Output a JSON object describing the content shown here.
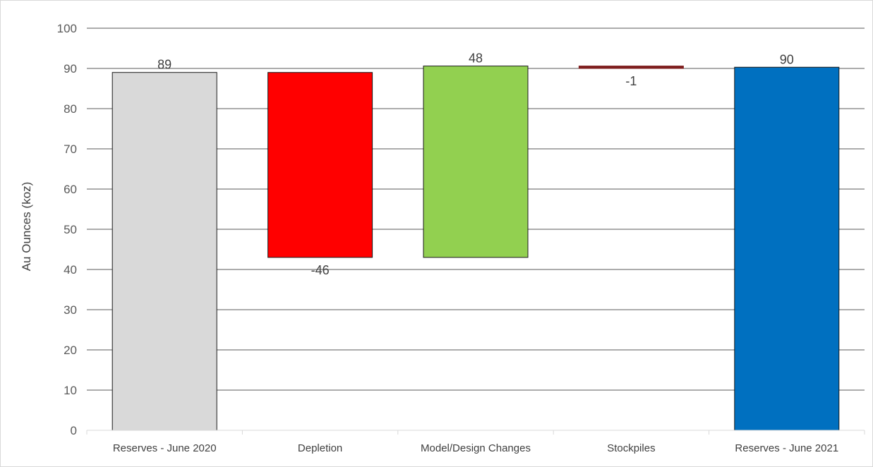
{
  "chart_data": {
    "type": "bar",
    "subtype": "waterfall",
    "title": "",
    "xlabel": "",
    "ylabel": "Au Ounces (koz)",
    "ylim": [
      0,
      100
    ],
    "yticks": [
      0,
      10,
      20,
      30,
      40,
      50,
      60,
      70,
      80,
      90,
      100
    ],
    "grid": true,
    "legend": "none",
    "categories": [
      "Reserves - June 2020",
      "Depletion",
      "Model/Design Changes",
      "Stockpiles",
      "Reserves - June 2021"
    ],
    "values": [
      89,
      -46,
      48,
      -1,
      90
    ],
    "data_labels": [
      "89",
      "-46",
      "48",
      "-1",
      "90"
    ],
    "bar_ranges": [
      [
        0,
        89
      ],
      [
        43,
        89
      ],
      [
        43,
        90.6
      ],
      [
        90,
        90.6
      ],
      [
        0,
        90.3
      ]
    ],
    "colors": [
      "#d9d9d9",
      "#ff0000",
      "#92d050",
      "#7f1f1f",
      "#0070c0"
    ],
    "gridline_color": "#595959"
  }
}
